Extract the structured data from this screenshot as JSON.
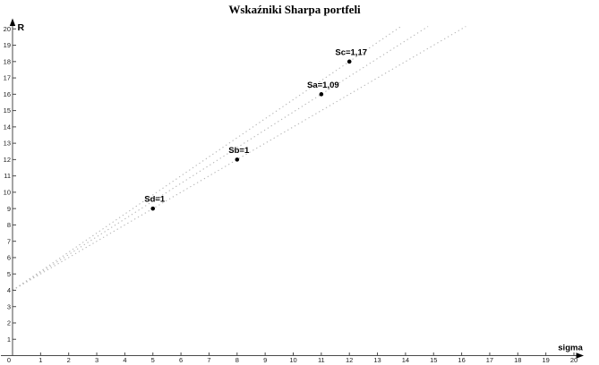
{
  "chart_data": {
    "type": "scatter",
    "title": "Wskaźniki Sharpa portfeli",
    "xlabel": "sigma",
    "ylabel": "R",
    "origin_label": "0",
    "xlim": [
      0,
      20
    ],
    "ylim": [
      0,
      20
    ],
    "x_ticks": [
      1,
      2,
      3,
      4,
      5,
      6,
      7,
      8,
      9,
      10,
      11,
      12,
      13,
      14,
      15,
      16,
      17,
      18,
      19,
      20
    ],
    "y_ticks": [
      1,
      2,
      3,
      4,
      5,
      6,
      7,
      8,
      9,
      10,
      11,
      12,
      13,
      14,
      15,
      16,
      17,
      18,
      19,
      20
    ],
    "grid": false,
    "legend": false,
    "risk_free_rate_R": 4,
    "points": [
      {
        "name": "Sd",
        "label": "Sd=1",
        "sigma": 5,
        "R": 9,
        "sharpe": 1.0
      },
      {
        "name": "Sb",
        "label": "Sb=1",
        "sigma": 8,
        "R": 12,
        "sharpe": 1.0
      },
      {
        "name": "Sa",
        "label": "Sa=1,09",
        "sigma": 11,
        "R": 16,
        "sharpe": 1.09
      },
      {
        "name": "Sc",
        "label": "Sc=1,17",
        "sigma": 12,
        "R": 18,
        "sharpe": 1.17
      }
    ],
    "lines_note": "dotted lines radiate from (0, risk_free_rate) through each point, clipped at top of plot",
    "colors": {
      "point": "#000000",
      "sharpe_line": "#b6b6b6",
      "axis": "#4a4a4a",
      "tick": "#4a4a4a",
      "background": "#ffffff"
    }
  }
}
